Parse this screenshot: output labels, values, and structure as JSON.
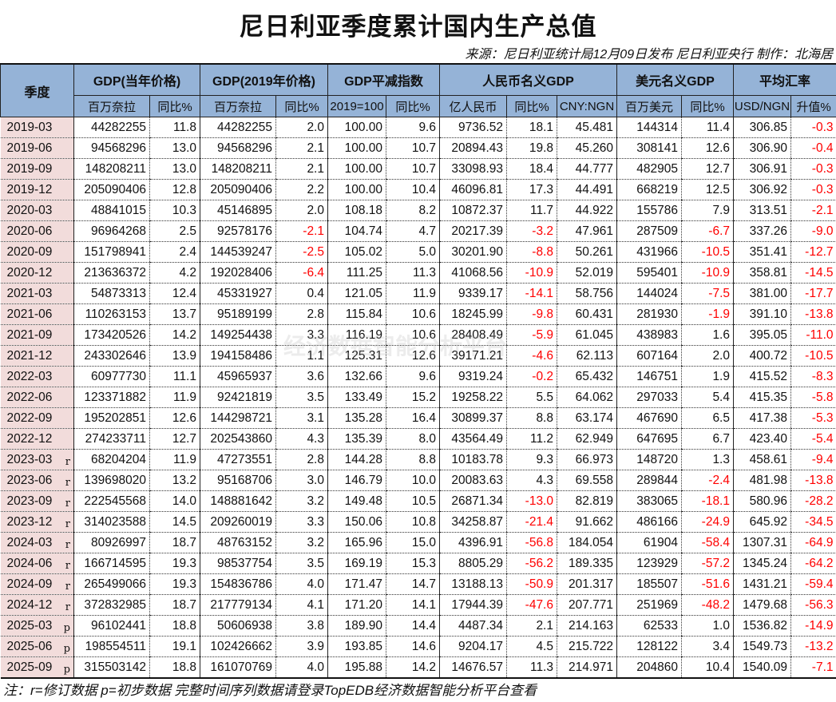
{
  "title": "尼日利亚季度累计国内生产总值",
  "source": "来源：尼日利亚统计局12月09日发布 尼日利亚央行 制作：北海居",
  "header": {
    "quarter": "季度",
    "groups": [
      {
        "label": "GDP(当年价格)",
        "sub": [
          "百万奈拉",
          "同比%"
        ]
      },
      {
        "label": "GDP(2019年价格)",
        "sub": [
          "百万奈拉",
          "同比%"
        ]
      },
      {
        "label": "GDP平减指数",
        "sub": [
          "2019=100",
          "同比%"
        ]
      },
      {
        "label": "人民币名义GDP",
        "sub": [
          "亿人民币",
          "同比%",
          "CNY:NGN"
        ]
      },
      {
        "label": "美元名义GDP",
        "sub": [
          "百万美元",
          "同比%"
        ]
      },
      {
        "label": "平均汇率",
        "sub": [
          "USD/NGN",
          "升值%"
        ]
      }
    ]
  },
  "rows": [
    {
      "q": "2019-03",
      "f": "",
      "v": [
        "44282255",
        "11.8",
        "44282255",
        "2.0",
        "100.00",
        "9.6",
        "9736.52",
        "18.1",
        "45.481",
        "144314",
        "11.4",
        "306.85",
        "-0.3"
      ]
    },
    {
      "q": "2019-06",
      "f": "",
      "v": [
        "94568296",
        "13.0",
        "94568296",
        "2.1",
        "100.00",
        "10.7",
        "20894.43",
        "19.8",
        "45.260",
        "308141",
        "12.6",
        "306.90",
        "-0.4"
      ]
    },
    {
      "q": "2019-09",
      "f": "",
      "v": [
        "148208211",
        "13.0",
        "148208211",
        "2.1",
        "100.00",
        "10.7",
        "33098.93",
        "18.4",
        "44.777",
        "482905",
        "12.7",
        "306.91",
        "-0.3"
      ]
    },
    {
      "q": "2019-12",
      "f": "",
      "v": [
        "205090406",
        "12.8",
        "205090406",
        "2.2",
        "100.00",
        "10.4",
        "46096.81",
        "17.3",
        "44.491",
        "668219",
        "12.5",
        "306.92",
        "-0.3"
      ]
    },
    {
      "q": "2020-03",
      "f": "",
      "v": [
        "48841015",
        "10.3",
        "45146895",
        "2.0",
        "108.18",
        "8.2",
        "10872.37",
        "11.7",
        "44.922",
        "155786",
        "7.9",
        "313.51",
        "-2.1"
      ]
    },
    {
      "q": "2020-06",
      "f": "",
      "v": [
        "96964268",
        "2.5",
        "92578176",
        "-2.1",
        "104.74",
        "4.7",
        "20217.39",
        "-3.2",
        "47.961",
        "287509",
        "-6.7",
        "337.26",
        "-9.0"
      ]
    },
    {
      "q": "2020-09",
      "f": "",
      "v": [
        "151798941",
        "2.4",
        "144539247",
        "-2.5",
        "105.02",
        "5.0",
        "30201.90",
        "-8.8",
        "50.261",
        "431966",
        "-10.5",
        "351.41",
        "-12.7"
      ]
    },
    {
      "q": "2020-12",
      "f": "",
      "v": [
        "213636372",
        "4.2",
        "192028406",
        "-6.4",
        "111.25",
        "11.3",
        "41068.56",
        "-10.9",
        "52.019",
        "595401",
        "-10.9",
        "358.81",
        "-14.5"
      ]
    },
    {
      "q": "2021-03",
      "f": "",
      "v": [
        "54873313",
        "12.4",
        "45331927",
        "0.4",
        "121.05",
        "11.9",
        "9339.17",
        "-14.1",
        "58.756",
        "144024",
        "-7.5",
        "381.00",
        "-17.7"
      ]
    },
    {
      "q": "2021-06",
      "f": "",
      "v": [
        "110263153",
        "13.7",
        "95189199",
        "2.8",
        "115.84",
        "10.6",
        "18245.99",
        "-9.8",
        "60.431",
        "281930",
        "-1.9",
        "391.10",
        "-13.8"
      ]
    },
    {
      "q": "2021-09",
      "f": "",
      "v": [
        "173420526",
        "14.2",
        "149254438",
        "3.3",
        "116.19",
        "10.6",
        "28408.49",
        "-5.9",
        "61.045",
        "438983",
        "1.6",
        "395.05",
        "-11.0"
      ]
    },
    {
      "q": "2021-12",
      "f": "",
      "v": [
        "243302646",
        "13.9",
        "194158486",
        "1.1",
        "125.31",
        "12.6",
        "39171.21",
        "-4.6",
        "62.113",
        "607164",
        "2.0",
        "400.72",
        "-10.5"
      ]
    },
    {
      "q": "2022-03",
      "f": "",
      "v": [
        "60977730",
        "11.1",
        "45965937",
        "3.6",
        "132.66",
        "9.6",
        "9319.24",
        "-0.2",
        "65.432",
        "146751",
        "1.9",
        "415.52",
        "-8.3"
      ]
    },
    {
      "q": "2022-06",
      "f": "",
      "v": [
        "123371882",
        "11.9",
        "92421819",
        "3.5",
        "133.49",
        "15.2",
        "19258.22",
        "5.5",
        "64.062",
        "297033",
        "5.4",
        "415.35",
        "-5.8"
      ]
    },
    {
      "q": "2022-09",
      "f": "",
      "v": [
        "195202851",
        "12.6",
        "144298721",
        "3.1",
        "135.28",
        "16.4",
        "30899.37",
        "8.8",
        "63.174",
        "467690",
        "6.5",
        "417.38",
        "-5.3"
      ]
    },
    {
      "q": "2022-12",
      "f": "",
      "v": [
        "274233711",
        "12.7",
        "202543860",
        "4.3",
        "135.39",
        "8.0",
        "43564.49",
        "11.2",
        "62.949",
        "647695",
        "6.7",
        "423.40",
        "-5.4"
      ]
    },
    {
      "q": "2023-03",
      "f": "r",
      "v": [
        "68204204",
        "11.9",
        "47273551",
        "2.8",
        "144.28",
        "8.8",
        "10183.78",
        "9.3",
        "66.973",
        "148720",
        "1.3",
        "458.61",
        "-9.4"
      ]
    },
    {
      "q": "2023-06",
      "f": "r",
      "v": [
        "139698020",
        "13.2",
        "95168706",
        "3.0",
        "146.79",
        "10.0",
        "20083.63",
        "4.3",
        "69.558",
        "289844",
        "-2.4",
        "481.98",
        "-13.8"
      ]
    },
    {
      "q": "2023-09",
      "f": "r",
      "v": [
        "222545568",
        "14.0",
        "148881642",
        "3.2",
        "149.48",
        "10.5",
        "26871.34",
        "-13.0",
        "82.819",
        "383065",
        "-18.1",
        "580.96",
        "-28.2"
      ]
    },
    {
      "q": "2023-12",
      "f": "r",
      "v": [
        "314023588",
        "14.5",
        "209260019",
        "3.3",
        "150.06",
        "10.8",
        "34258.87",
        "-21.4",
        "91.662",
        "486166",
        "-24.9",
        "645.92",
        "-34.5"
      ]
    },
    {
      "q": "2024-03",
      "f": "r",
      "v": [
        "80926997",
        "18.7",
        "48763152",
        "3.2",
        "165.96",
        "15.0",
        "4396.91",
        "-56.8",
        "184.054",
        "61904",
        "-58.4",
        "1307.31",
        "-64.9"
      ]
    },
    {
      "q": "2024-06",
      "f": "r",
      "v": [
        "166714595",
        "19.3",
        "98537754",
        "3.5",
        "169.19",
        "15.3",
        "8805.29",
        "-56.2",
        "189.335",
        "123929",
        "-57.2",
        "1345.24",
        "-64.2"
      ]
    },
    {
      "q": "2024-09",
      "f": "r",
      "v": [
        "265499066",
        "19.3",
        "154836786",
        "4.0",
        "171.47",
        "14.7",
        "13188.13",
        "-50.9",
        "201.317",
        "185507",
        "-51.6",
        "1431.21",
        "-59.4"
      ]
    },
    {
      "q": "2024-12",
      "f": "r",
      "v": [
        "372832985",
        "18.7",
        "217779134",
        "4.1",
        "171.20",
        "14.1",
        "17944.39",
        "-47.6",
        "207.771",
        "251969",
        "-48.2",
        "1479.68",
        "-56.3"
      ]
    },
    {
      "q": "2025-03",
      "f": "p",
      "v": [
        "96102441",
        "18.8",
        "50606938",
        "3.8",
        "189.90",
        "14.4",
        "4487.34",
        "2.1",
        "214.163",
        "62533",
        "1.0",
        "1536.82",
        "-14.9"
      ]
    },
    {
      "q": "2025-06",
      "f": "p",
      "v": [
        "198554511",
        "19.1",
        "102426662",
        "3.9",
        "193.85",
        "14.6",
        "9204.17",
        "4.5",
        "215.722",
        "128122",
        "3.4",
        "1549.73",
        "-13.2"
      ]
    },
    {
      "q": "2025-09",
      "f": "p",
      "v": [
        "315503142",
        "18.8",
        "161070769",
        "4.0",
        "195.88",
        "14.2",
        "14676.57",
        "11.3",
        "214.971",
        "204860",
        "10.4",
        "1540.09",
        "-7.1"
      ]
    }
  ],
  "note": "注：r=修订数据 p=初步数据 完整时间序列数据请登录TopEDB经济数据智能分析平台查看",
  "watermark": "经济数据智能分析平台",
  "colors": {
    "header_bg": "#95b3d7",
    "quarter_bg": "#f2dcdb",
    "negative": "#ff0000"
  }
}
